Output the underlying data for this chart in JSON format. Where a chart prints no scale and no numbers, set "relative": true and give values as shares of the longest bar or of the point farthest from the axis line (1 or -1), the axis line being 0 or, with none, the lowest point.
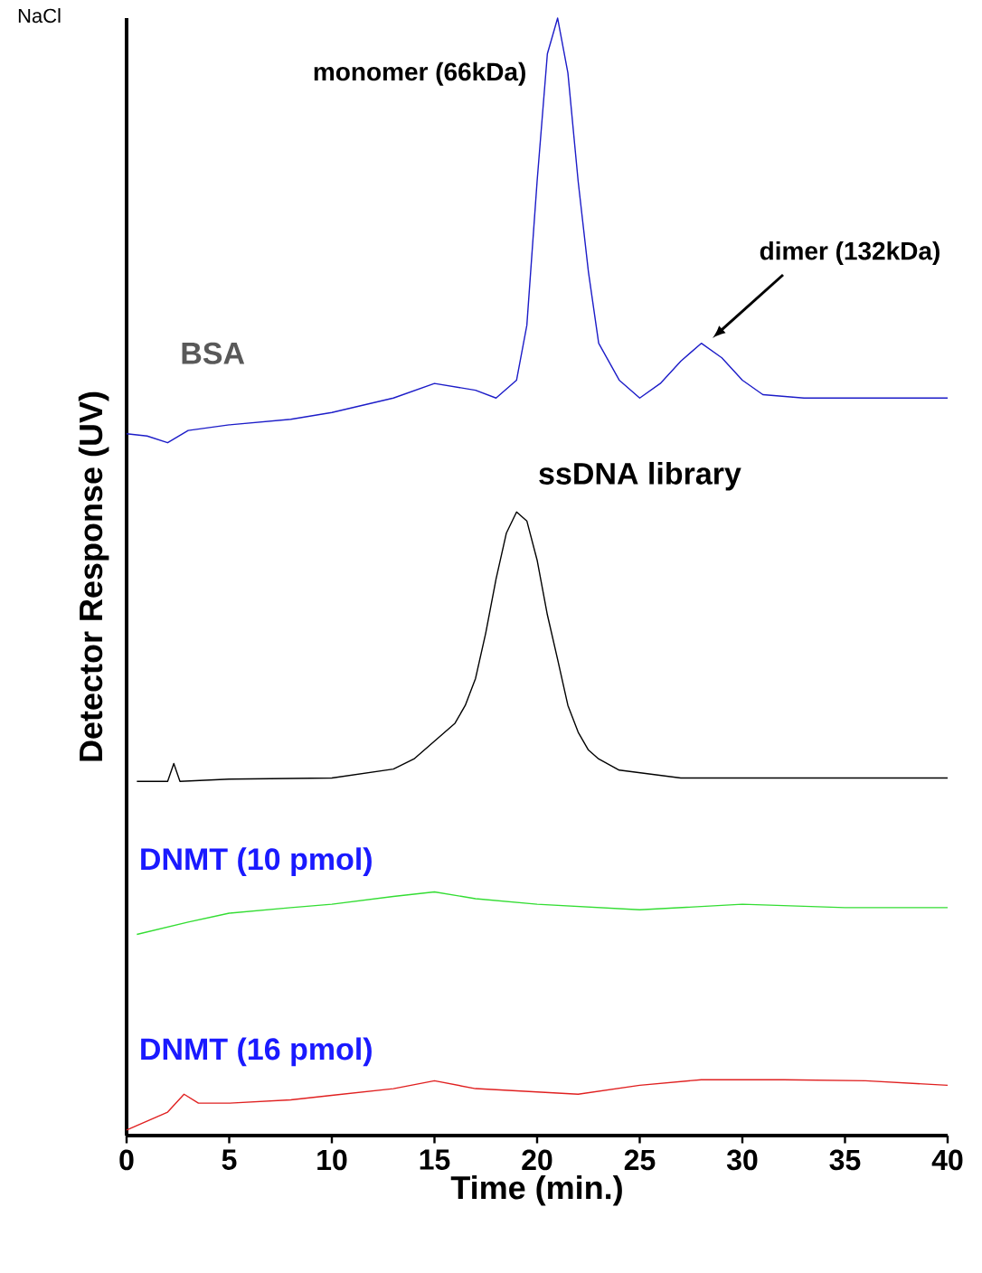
{
  "chart_data": {
    "type": "line",
    "relative": true,
    "xlabel": "Time (min.)",
    "ylabel": "Detector Response (UV)",
    "xlim": [
      0,
      40
    ],
    "xticks": [
      0,
      5,
      10,
      15,
      20,
      25,
      30,
      35,
      40
    ],
    "grid": false,
    "marker": "none",
    "line_style": "solid",
    "series": [
      {
        "name": "BSA",
        "color": "#1c1cc8",
        "x": [
          0,
          1,
          2,
          3,
          5,
          8,
          10,
          13,
          15,
          17,
          18,
          19,
          19.5,
          20,
          20.5,
          21,
          21.5,
          22,
          22.5,
          23,
          24,
          25,
          26,
          27,
          28,
          29,
          30,
          31,
          33,
          36,
          40
        ],
        "values": [
          0.628,
          0.626,
          0.62,
          0.631,
          0.636,
          0.641,
          0.647,
          0.66,
          0.673,
          0.667,
          0.66,
          0.676,
          0.725,
          0.854,
          0.968,
          1.0,
          0.951,
          0.854,
          0.773,
          0.709,
          0.676,
          0.66,
          0.673,
          0.693,
          0.709,
          0.696,
          0.676,
          0.663,
          0.66,
          0.66,
          0.66
        ]
      },
      {
        "name": "ssDNA library",
        "color": "#000000",
        "x": [
          0.5,
          2,
          2.3,
          2.6,
          5,
          10,
          13,
          14,
          15,
          16,
          16.5,
          17,
          17.5,
          18,
          18.5,
          19,
          19.5,
          20,
          20.5,
          21,
          21.5,
          22,
          22.5,
          23,
          24,
          27,
          30,
          35,
          40
        ],
        "values": [
          0.317,
          0.317,
          0.333,
          0.317,
          0.319,
          0.32,
          0.328,
          0.337,
          0.353,
          0.369,
          0.385,
          0.409,
          0.45,
          0.498,
          0.539,
          0.558,
          0.55,
          0.515,
          0.466,
          0.426,
          0.385,
          0.361,
          0.345,
          0.337,
          0.327,
          0.32,
          0.32,
          0.32,
          0.32
        ]
      },
      {
        "name": "DNMT (10 pmol)",
        "color": "#33dd33",
        "x": [
          0.5,
          3,
          5,
          8,
          10,
          13,
          15,
          17,
          20,
          25,
          30,
          35,
          40
        ],
        "values": [
          0.18,
          0.191,
          0.199,
          0.204,
          0.207,
          0.214,
          0.218,
          0.212,
          0.207,
          0.202,
          0.207,
          0.204,
          0.204
        ]
      },
      {
        "name": "DNMT (16 pmol)",
        "color": "#e02020",
        "x": [
          0,
          1,
          2,
          2.8,
          3.5,
          5,
          8,
          10,
          13,
          15,
          17,
          20,
          22,
          25,
          28,
          32,
          36,
          40
        ],
        "values": [
          0.005,
          0.013,
          0.021,
          0.037,
          0.029,
          0.029,
          0.032,
          0.036,
          0.042,
          0.049,
          0.042,
          0.039,
          0.037,
          0.045,
          0.05,
          0.05,
          0.049,
          0.045
        ]
      }
    ],
    "annotations": [
      {
        "text": "monomer (66kDa)",
        "x": 21,
        "y": 1.0
      },
      "dimer (132kDa)",
      "NaCl"
    ]
  }
}
